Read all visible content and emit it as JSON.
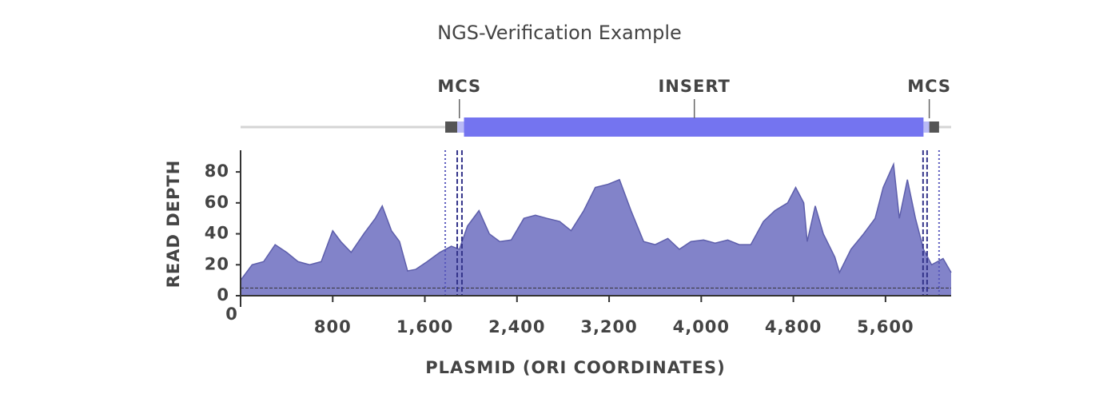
{
  "chart_data": {
    "type": "area",
    "title": "NGS-Verification Example",
    "xlabel": "PLASMID (ORI COORDINATES)",
    "ylabel": "READ DEPTH",
    "xlim": [
      0,
      6170
    ],
    "ylim": [
      0,
      94
    ],
    "xticks": [
      0,
      {
        "value": 800,
        "label": "800"
      },
      {
        "value": 1600,
        "label": "1,600"
      },
      {
        "value": 2400,
        "label": "2,400"
      },
      {
        "value": 3200,
        "label": "3,200"
      },
      {
        "value": 4000,
        "label": "4,000"
      },
      {
        "value": 4800,
        "label": "4,800"
      },
      {
        "value": 5600,
        "label": "5,600"
      }
    ],
    "yticks": [
      0,
      20,
      40,
      60,
      80
    ],
    "x": [
      0,
      100,
      200,
      300,
      400,
      500,
      600,
      700,
      800,
      870,
      960,
      1070,
      1170,
      1230,
      1310,
      1380,
      1450,
      1520,
      1620,
      1730,
      1830,
      1900,
      1970,
      2070,
      2160,
      2250,
      2350,
      2460,
      2560,
      2660,
      2770,
      2870,
      2980,
      3080,
      3190,
      3290,
      3390,
      3500,
      3600,
      3710,
      3810,
      3910,
      4020,
      4120,
      4230,
      4330,
      4430,
      4540,
      4640,
      4750,
      4820,
      4890,
      4920,
      4990,
      5060,
      5160,
      5200,
      5300,
      5410,
      5510,
      5580,
      5670,
      5720,
      5790,
      5860,
      5930,
      6000,
      6100,
      6170
    ],
    "series": [
      {
        "name": "Read depth",
        "color": "#8283c9",
        "line_color": "#5d5eab",
        "values": [
          10,
          20,
          22,
          33,
          28,
          22,
          20,
          22,
          42,
          35,
          28,
          40,
          50,
          58,
          42,
          35,
          16,
          17,
          22,
          28,
          32,
          30,
          45,
          55,
          40,
          35,
          36,
          50,
          52,
          50,
          48,
          42,
          55,
          70,
          72,
          75,
          55,
          35,
          33,
          37,
          30,
          35,
          36,
          34,
          36,
          33,
          33,
          48,
          55,
          60,
          70,
          60,
          35,
          58,
          40,
          25,
          15,
          30,
          40,
          50,
          70,
          85,
          50,
          75,
          50,
          30,
          20,
          24,
          15
        ]
      }
    ],
    "hline": {
      "y": 5,
      "style": "dashed"
    },
    "vlines": [
      {
        "x": 1777,
        "style": "dotted"
      },
      {
        "x": 1881,
        "style": "dashed"
      },
      {
        "x": 1922,
        "style": "dashed"
      },
      {
        "x": 5926,
        "style": "dashed"
      },
      {
        "x": 5961,
        "style": "dashed"
      },
      {
        "x": 6065,
        "style": "dotted"
      }
    ],
    "features": [
      {
        "start": 1777,
        "end": 1881,
        "color": "#555555"
      },
      {
        "start": 1881,
        "end": 1940,
        "color": "#b9baf6"
      },
      {
        "start": 1940,
        "end": 5930,
        "color": "#7474f0"
      },
      {
        "start": 5930,
        "end": 5980,
        "color": "#b9baf6"
      },
      {
        "start": 5980,
        "end": 6065,
        "color": "#555555"
      }
    ],
    "annotations": [
      {
        "label": "MCS",
        "x": 1900
      },
      {
        "label": "INSERT",
        "x": 3940
      },
      {
        "label": "MCS",
        "x": 5980
      }
    ]
  }
}
